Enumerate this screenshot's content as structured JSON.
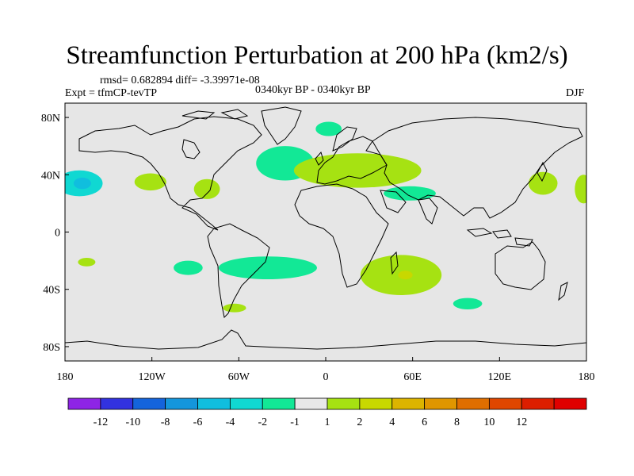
{
  "title": "Streamfunction Perturbation at 200 hPa (km2/s)",
  "stats_text": "rmsd= 0.682894 diff= -3.39971e-08",
  "experiment_text": "Expt = tfmCP-tevTP",
  "period_text": "0340kyr BP - 0340kyr BP",
  "season": "DJF",
  "map": {
    "projection": "cylindrical equidistant",
    "lon_range": [
      -180,
      180
    ],
    "lat_range": [
      -90,
      90
    ],
    "ocean_land_fill": "#e6e6e6",
    "coastline_color": "#000000"
  },
  "axes": {
    "x_ticks": [
      {
        "value": -180,
        "label": "180"
      },
      {
        "value": -120,
        "label": "120W"
      },
      {
        "value": -60,
        "label": "60W"
      },
      {
        "value": 0,
        "label": "0"
      },
      {
        "value": 60,
        "label": "60E"
      },
      {
        "value": 120,
        "label": "120E"
      },
      {
        "value": 180,
        "label": "180"
      }
    ],
    "y_ticks": [
      {
        "value": 80,
        "label": "80N"
      },
      {
        "value": 40,
        "label": "40N"
      },
      {
        "value": 0,
        "label": "0"
      },
      {
        "value": -40,
        "label": "40S"
      },
      {
        "value": -80,
        "label": "80S"
      }
    ]
  },
  "colorbar": {
    "colors": [
      "#8e24e6",
      "#3232e0",
      "#1464dc",
      "#1496dc",
      "#10bede",
      "#10d8d2",
      "#12e896",
      "#e8e8e8",
      "#a6e212",
      "#c8d800",
      "#dcb400",
      "#e09600",
      "#e06e00",
      "#e04600",
      "#dc1e00",
      "#e00000"
    ],
    "labels": [
      "-12",
      "-10",
      "-8",
      "-6",
      "-4",
      "-2",
      "-1",
      "1",
      "2",
      "4",
      "6",
      "8",
      "10",
      "12"
    ]
  },
  "chart_data": {
    "type": "heatmap",
    "title": "Streamfunction Perturbation at 200 hPa (km2/s)",
    "variable": "Streamfunction perturbation",
    "units": "km2/s",
    "level": "200 hPa",
    "contour_levels": [
      -12,
      -10,
      -8,
      -6,
      -4,
      -2,
      -1,
      1,
      2,
      4,
      6,
      8,
      10,
      12
    ],
    "anomalies": [
      {
        "region": "central North Pacific",
        "lon": -170,
        "lat": 34,
        "rx": 16,
        "ry": 9,
        "value": -2.5
      },
      {
        "region": "central North Pacific core",
        "lon": -168,
        "lat": 34,
        "rx": 6,
        "ry": 4,
        "value": -4.5
      },
      {
        "region": "east Pacific subtropics",
        "lon": -121,
        "lat": 35,
        "rx": 11,
        "ry": 6,
        "value": 1.5
      },
      {
        "region": "southeast US",
        "lon": -82,
        "lat": 30,
        "rx": 9,
        "ry": 7,
        "value": 1.5
      },
      {
        "region": "mid North Atlantic",
        "lon": -28,
        "lat": 48,
        "rx": 20,
        "ry": 12,
        "value": -1.5
      },
      {
        "region": "Greenland Sea",
        "lon": 2,
        "lat": 72,
        "rx": 9,
        "ry": 5,
        "value": -1.5
      },
      {
        "region": "Europe to Middle East",
        "lon": 22,
        "lat": 43,
        "rx": 44,
        "ry": 12,
        "value": 1.5
      },
      {
        "region": "Arabian Sea / South Asia",
        "lon": 58,
        "lat": 27,
        "rx": 18,
        "ry": 5,
        "value": -1.5
      },
      {
        "region": "western Pacific subtropics",
        "lon": 150,
        "lat": 34,
        "rx": 10,
        "ry": 8,
        "value": 1.5
      },
      {
        "region": "central Pacific near dateline",
        "lon": 178,
        "lat": 30,
        "rx": 6,
        "ry": 10,
        "value": 1.5
      },
      {
        "region": "southwest Pacific",
        "lon": -165,
        "lat": -21,
        "rx": 6,
        "ry": 3,
        "value": 1.5
      },
      {
        "region": "southeast Pacific",
        "lon": -95,
        "lat": -25,
        "rx": 10,
        "ry": 5,
        "value": -1.5
      },
      {
        "region": "South America / South Atlantic",
        "lon": -40,
        "lat": -25,
        "rx": 34,
        "ry": 8,
        "value": -1.5
      },
      {
        "region": "Patagonia",
        "lon": -63,
        "lat": -53,
        "rx": 8,
        "ry": 3,
        "value": 1.5
      },
      {
        "region": "southwest Indian Ocean",
        "lon": 52,
        "lat": -30,
        "rx": 28,
        "ry": 14,
        "value": 1.5
      },
      {
        "region": "southwest Indian Ocean core",
        "lon": 55,
        "lat": -30,
        "rx": 5,
        "ry": 3,
        "value": 2.5
      },
      {
        "region": "southern Indian Ocean",
        "lon": 98,
        "lat": -50,
        "rx": 10,
        "ry": 4,
        "value": -1.5
      }
    ]
  }
}
